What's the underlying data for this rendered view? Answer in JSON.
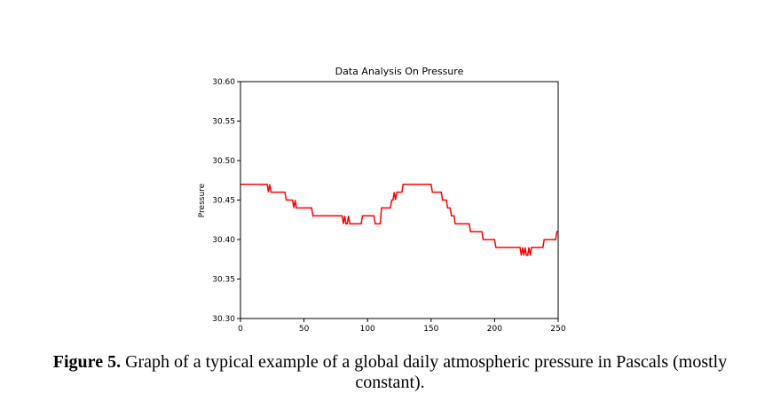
{
  "chart_data": {
    "type": "line",
    "title": "Data Analysis On Pressure",
    "xlabel": "",
    "ylabel": "Pressure",
    "xlim": [
      0,
      250
    ],
    "ylim": [
      30.3,
      30.6
    ],
    "xticks": [
      "0",
      "50",
      "100",
      "150",
      "200",
      "250"
    ],
    "yticks": [
      "30.30",
      "30.35",
      "30.40",
      "30.45",
      "30.50",
      "30.55",
      "30.60"
    ],
    "grid": false,
    "series": [
      {
        "color": "#ff0000",
        "x": [
          0,
          21,
          22,
          23,
          24,
          25,
          26,
          35,
          36,
          41,
          42,
          43,
          44,
          45,
          46,
          56,
          57,
          80,
          81,
          82,
          83,
          84,
          85,
          86,
          87,
          95,
          96,
          105,
          106,
          110,
          111,
          114,
          115,
          118,
          119,
          120,
          121,
          122,
          123,
          124,
          127,
          128,
          132,
          133,
          134,
          150,
          151,
          152,
          158,
          159,
          162,
          163,
          165,
          166,
          168,
          169,
          172,
          173,
          180,
          181,
          184,
          185,
          190,
          191,
          195,
          196,
          200,
          201,
          210,
          211,
          220,
          221,
          222,
          223,
          224,
          225,
          226,
          227,
          228,
          229,
          230,
          238,
          239,
          247,
          248,
          249,
          250
        ],
        "y": [
          30.47,
          30.47,
          30.46,
          30.47,
          30.46,
          30.46,
          30.46,
          30.46,
          30.45,
          30.45,
          30.44,
          30.45,
          30.44,
          30.44,
          30.44,
          30.44,
          30.43,
          30.43,
          30.42,
          30.43,
          30.42,
          30.42,
          30.43,
          30.42,
          30.42,
          30.42,
          30.43,
          30.43,
          30.42,
          30.42,
          30.44,
          30.44,
          30.44,
          30.44,
          30.45,
          30.45,
          30.46,
          30.45,
          30.46,
          30.46,
          30.46,
          30.47,
          30.47,
          30.47,
          30.47,
          30.47,
          30.46,
          30.46,
          30.46,
          30.45,
          30.45,
          30.44,
          30.44,
          30.43,
          30.43,
          30.42,
          30.42,
          30.42,
          30.42,
          30.41,
          30.41,
          30.41,
          30.41,
          30.4,
          30.4,
          30.4,
          30.4,
          30.39,
          30.39,
          30.39,
          30.39,
          30.38,
          30.39,
          30.38,
          30.39,
          30.38,
          30.38,
          30.39,
          30.38,
          30.39,
          30.39,
          30.39,
          30.4,
          30.4,
          30.4,
          30.41,
          30.41
        ]
      }
    ]
  },
  "caption": {
    "label": "Figure 5.",
    "text": " Graph of a typical example of a global daily atmospheric pressure in Pascals (mostly constant)."
  }
}
